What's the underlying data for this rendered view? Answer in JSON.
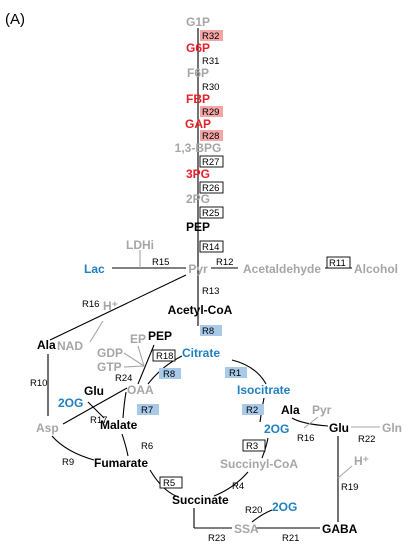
{
  "panel_label": "(A)",
  "colors": {
    "gray": "#a6a6a6",
    "red": "#e8202a",
    "blue": "#1f7fc1",
    "black": "#000000",
    "red_box": "#f4a6a6",
    "blue_box": "#a9c9e8"
  },
  "metabolites": {
    "g1p": "G1P",
    "g6p": "G6P",
    "f6p": "F6P",
    "fbp": "FBP",
    "gap": "GAP",
    "bpg13": "1,3-BPG",
    "pg3": "3PG",
    "pg2": "2PG",
    "pep": "PEP",
    "ldhi": "LDHi",
    "lac": "Lac",
    "pyr": "Pyr",
    "acetaldehyde": "Acetaldehyde",
    "alcohol": "Alcohol",
    "nad": "NAD",
    "hplus1": "H⁺",
    "acetylcoa": "Acetyl-CoA",
    "ala1": "Ala",
    "ep": "EP",
    "gdp": "GDP",
    "gtp": "GTP",
    "pep2": "PEP",
    "citrate": "Citrate",
    "oaa": "OAA",
    "glu1": "Glu",
    "og1": "2OG",
    "asp": "Asp",
    "malate": "Malate",
    "isocitrate": "Isocitrate",
    "ala2": "Ala",
    "pyr2": "Pyr",
    "og2": "2OG",
    "glu2": "Glu",
    "gln": "Gln",
    "fumarate": "Fumarate",
    "succinylcoa": "Succinyl-CoA",
    "hplus2": "H⁺",
    "succinate": "Succinate",
    "og3": "2OG",
    "ssa": "SSA",
    "gaba": "GABA"
  },
  "reactions": {
    "r1": "R1",
    "r2": "R2",
    "r3": "R3",
    "r4": "R4",
    "r5": "R5",
    "r6": "R6",
    "r7": "R7",
    "r8a": "R8",
    "r8b": "R8",
    "r9": "R9",
    "r10": "R10",
    "r11": "R11",
    "r12": "R12",
    "r13": "R13",
    "r14": "R14",
    "r15": "R15",
    "r16a": "R16",
    "r16b": "R16",
    "r17": "R17",
    "r18": "R18",
    "r19": "R19",
    "r20": "R20",
    "r21": "R21",
    "r22": "R22",
    "r23": "R23",
    "r24": "R24",
    "r25": "R25",
    "r26": "R26",
    "r27": "R27",
    "r28": "R28",
    "r29": "R29",
    "r30": "R30",
    "r31": "R31",
    "r32": "R32"
  }
}
